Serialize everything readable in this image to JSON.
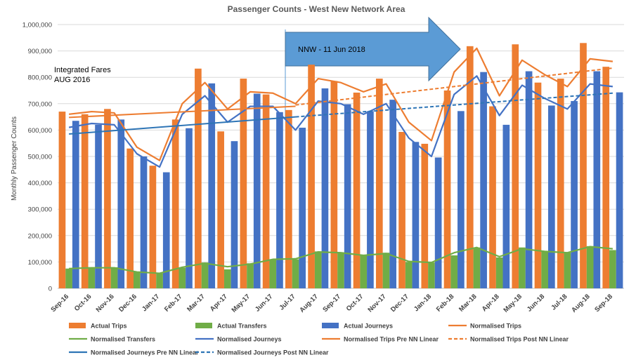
{
  "chart_data": {
    "type": "bar",
    "title": "Passenger Counts - West New Network Area",
    "ylabel": "Monthly Passenger Counts",
    "xlabel": "",
    "ylim": [
      0,
      1000000
    ],
    "yticks": [
      "0",
      "100,000",
      "200,000",
      "300,000",
      "400,000",
      "500,000",
      "600,000",
      "700,000",
      "800,000",
      "900,000",
      "1,000,000"
    ],
    "ytick_values": [
      0,
      100000,
      200000,
      300000,
      400000,
      500000,
      600000,
      700000,
      800000,
      900000,
      1000000
    ],
    "categories": [
      "Sep-16",
      "Oct-16",
      "Nov-16",
      "Dec-16",
      "Jan-17",
      "Feb-17",
      "Mar-17",
      "Apr-17",
      "May-17",
      "Jun-17",
      "Jul-17",
      "Aug-17",
      "Sep-17",
      "Oct-17",
      "Nov-17",
      "Dec-17",
      "Jan-18",
      "Feb-18",
      "Mar-18",
      "Apr-18",
      "May-18",
      "Jun-18",
      "Jul-18",
      "Aug-18",
      "Sep-18"
    ],
    "grid": "horizontal",
    "legend_position": "bottom",
    "series": [
      {
        "name": "Actual Trips",
        "kind": "bar",
        "color": "#ED7D31",
        "values": [
          670000,
          660000,
          680000,
          530000,
          465000,
          640000,
          833000,
          595000,
          795000,
          735000,
          676000,
          848000,
          786000,
          742000,
          795000,
          593000,
          548000,
          750000,
          918000,
          690000,
          925000,
          780000,
          795000,
          930000,
          840000
        ]
      },
      {
        "name": "Actual Transfers",
        "kind": "bar",
        "color": "#70AD47",
        "values": [
          75000,
          80000,
          80000,
          62000,
          57000,
          78000,
          98000,
          72000,
          95000,
          110000,
          110000,
          140000,
          135000,
          125000,
          135000,
          100000,
          98000,
          125000,
          155000,
          117000,
          155000,
          140000,
          135000,
          160000,
          145000
        ]
      },
      {
        "name": "Actual Journeys",
        "kind": "bar",
        "color": "#4472C4",
        "values": [
          635000,
          620000,
          640000,
          500000,
          440000,
          607000,
          777000,
          558000,
          738000,
          668000,
          609000,
          758000,
          698000,
          672000,
          715000,
          555000,
          496000,
          672000,
          820000,
          620000,
          823000,
          693000,
          710000,
          823000,
          743000
        ]
      },
      {
        "name": "Normalised Trips",
        "kind": "line",
        "color": "#ED7D31",
        "values": [
          660000,
          670000,
          665000,
          535000,
          485000,
          700000,
          780000,
          680000,
          745000,
          740000,
          700000,
          795000,
          780000,
          745000,
          775000,
          630000,
          560000,
          820000,
          910000,
          730000,
          865000,
          810000,
          765000,
          870000,
          860000
        ]
      },
      {
        "name": "Normalised Transfers",
        "kind": "line",
        "color": "#70AD47",
        "values": [
          75000,
          78000,
          78000,
          62000,
          57000,
          80000,
          95000,
          82000,
          92000,
          110000,
          112000,
          138000,
          135000,
          125000,
          132000,
          102000,
          98000,
          135000,
          155000,
          120000,
          150000,
          140000,
          135000,
          158000,
          150000
        ]
      },
      {
        "name": "Normalised Journeys",
        "kind": "line",
        "color": "#4472C4",
        "values": [
          610000,
          625000,
          620000,
          510000,
          460000,
          660000,
          730000,
          630000,
          690000,
          690000,
          600000,
          710000,
          700000,
          660000,
          700000,
          570000,
          500000,
          735000,
          805000,
          655000,
          770000,
          720000,
          680000,
          775000,
          765000
        ]
      },
      {
        "name": "Normalised Trips Pre NN Linear",
        "kind": "trend",
        "style": "solid",
        "color": "#ED7D31",
        "from_index": 0,
        "to_index": 10,
        "start_value": 648000,
        "end_value": 690000
      },
      {
        "name": "Normalised Trips Post NN Linear",
        "kind": "trend",
        "style": "dashed",
        "color": "#ED7D31",
        "from_index": 10,
        "to_index": 24,
        "start_value": 695000,
        "end_value": 835000
      },
      {
        "name": "Normalised Journeys Pre NN Linear",
        "kind": "trend",
        "style": "solid",
        "color": "#2E75B6",
        "from_index": 0,
        "to_index": 10,
        "start_value": 585000,
        "end_value": 650000
      },
      {
        "name": "Normalised Journeys Post NN Linear",
        "kind": "trend",
        "style": "dashed",
        "color": "#2E75B6",
        "from_index": 10,
        "to_index": 24,
        "start_value": 650000,
        "end_value": 740000
      }
    ],
    "annotations": [
      {
        "text_lines": [
          "Integrated Fares",
          "AUG 2016"
        ],
        "kind": "text"
      },
      {
        "text": "NNW -  11 Jun 2018",
        "kind": "arrow",
        "color": "#5B9BD5",
        "at_index": 10
      }
    ]
  }
}
